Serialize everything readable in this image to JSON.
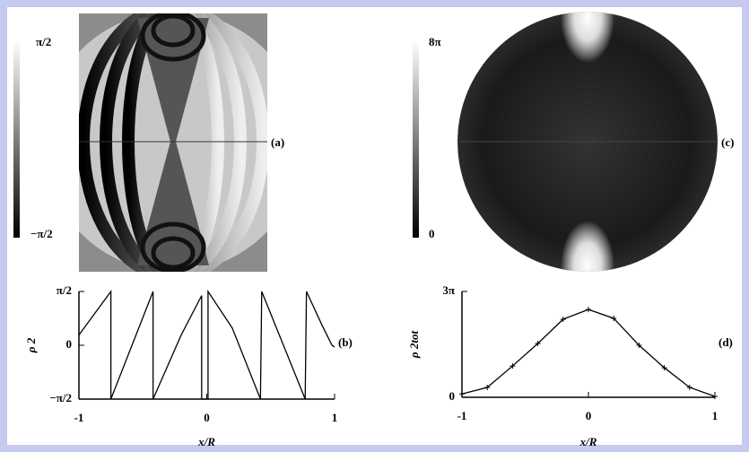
{
  "panels": {
    "a": {
      "label": "(a)",
      "colorbar_ticks": [
        "π/2",
        "−π/2"
      ]
    },
    "c": {
      "label": "(c)",
      "colorbar_ticks": [
        "8π",
        "0"
      ]
    }
  },
  "chart_data": [
    {
      "type": "line",
      "panel_label": "(b)",
      "xlabel": "x/R",
      "ylabel": "ρ 2",
      "x": [
        -1,
        -0.75,
        -0.75,
        -0.42,
        -0.42,
        -0.2,
        -0.04,
        -0.04,
        0.01,
        0.01,
        0.2,
        0.42,
        0.43,
        0.6,
        0.77,
        0.78,
        0.9,
        0.98,
        1.0
      ],
      "series": [
        {
          "color": "#000000",
          "values": [
            0.3,
            1.57,
            -1.57,
            1.57,
            -1.57,
            0.3,
            1.45,
            -1.57,
            -1.57,
            1.57,
            0.5,
            -1.57,
            1.57,
            0.0,
            -1.57,
            1.57,
            0.6,
            0.0,
            -0.05
          ]
        }
      ],
      "xlim": [
        -1,
        1
      ],
      "ylim": [
        -1.5708,
        1.5708
      ],
      "xticks": [
        -1,
        0,
        1
      ],
      "yticks": [
        {
          "value": -1.5708,
          "label": "−π/2"
        },
        0,
        {
          "value": 1.5708,
          "label": "π/2"
        }
      ]
    },
    {
      "type": "line",
      "panel_label": "(d)",
      "xlabel": "x/R",
      "ylabel": "ρ 2tot",
      "markers": "+",
      "x": [
        -1,
        -0.8,
        -0.6,
        -0.4,
        -0.2,
        0,
        0.2,
        0.4,
        0.6,
        0.8,
        1
      ],
      "series": [
        {
          "color": "#000000",
          "values": [
            0.3,
            0.88,
            2.79,
            4.79,
            6.95,
            7.82,
            7.03,
            4.63,
            2.63,
            0.88,
            0.08
          ]
        }
      ],
      "xlim": [
        -1,
        1
      ],
      "ylim": [
        0,
        9.4248
      ],
      "xticks": [
        -1,
        0,
        1
      ],
      "yticks": [
        0,
        {
          "value": 9.4248,
          "label": "3π"
        }
      ]
    }
  ]
}
